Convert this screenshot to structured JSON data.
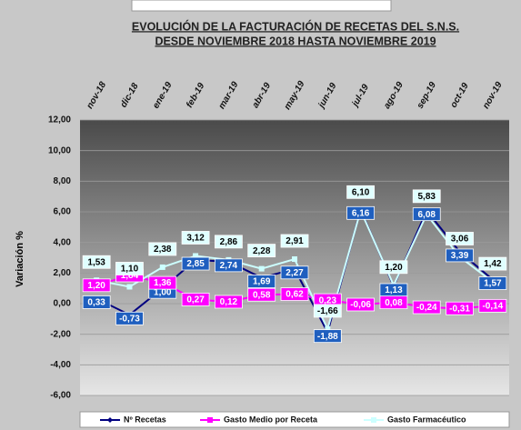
{
  "chart_data": {
    "type": "line",
    "title": "EVOLUCIÓN DE LA FACTURACIÓN DE RECETAS DEL S.N.S.",
    "subtitle": "DESDE  NOVIEMBRE 2018 HASTA  NOVIEMBRE 2019",
    "y_label": "Variación %",
    "categories": [
      "nov-18",
      "dic-18",
      "ene-19",
      "feb-19",
      "mar-19",
      "abr-19",
      "may-19",
      "jun-19",
      "jul-19",
      "ago-19",
      "sep-19",
      "oct-19",
      "nov-19"
    ],
    "series": [
      {
        "name": "Nº Recetas",
        "color": "#000080",
        "label_color": "#1f5fbf",
        "values": [
          0.33,
          -0.73,
          1.0,
          2.85,
          2.74,
          1.69,
          2.27,
          -1.88,
          6.16,
          1.13,
          6.08,
          3.39,
          1.57
        ],
        "value_labels": [
          "0,33",
          "-0,73",
          "1,00",
          "2,85",
          "2,74",
          "1,69",
          "2,27",
          "-1,88",
          "6,16",
          "1,13",
          "6,08",
          "3,39",
          "1,57"
        ]
      },
      {
        "name": "Gasto Medio por Receta",
        "color": "#ff00ff",
        "label_color": "#ff00ff",
        "values": [
          1.2,
          1.84,
          1.36,
          0.27,
          0.12,
          0.58,
          0.62,
          0.23,
          -0.06,
          0.08,
          -0.24,
          -0.31,
          -0.14
        ],
        "value_labels": [
          "1,20",
          "1,84",
          "1,36",
          "0,27",
          "0,12",
          "0,58",
          "0,62",
          "0,23",
          "-0,06",
          "0,08",
          "-0,24",
          "-0,31",
          "-0,14"
        ]
      },
      {
        "name": "Gasto Farmacéutico",
        "color": "#ccffff",
        "label_color": "#e0ffff",
        "values": [
          1.53,
          1.1,
          2.38,
          3.12,
          2.86,
          2.28,
          2.91,
          -1.66,
          6.1,
          1.2,
          5.83,
          3.06,
          1.42
        ],
        "value_labels": [
          "1,53",
          "1,10",
          "2,38",
          "3,12",
          "2,86",
          "2,28",
          "2,91",
          "-1,66",
          "6,10",
          "1,20",
          "5,83",
          "3,06",
          "1,42"
        ]
      }
    ],
    "ylim": [
      -6,
      12
    ],
    "yticks": [
      {
        "value": -6,
        "label": "-6,00"
      },
      {
        "value": -4,
        "label": "-4,00"
      },
      {
        "value": -2,
        "label": "-2,00"
      },
      {
        "value": 0,
        "label": "0,00"
      },
      {
        "value": 2,
        "label": "2,00"
      },
      {
        "value": 4,
        "label": "4,00"
      },
      {
        "value": 6,
        "label": "6,00"
      },
      {
        "value": 8,
        "label": "8,00"
      },
      {
        "value": 10,
        "label": "10,00"
      },
      {
        "value": 12,
        "label": "12,00"
      }
    ],
    "grid": true
  }
}
